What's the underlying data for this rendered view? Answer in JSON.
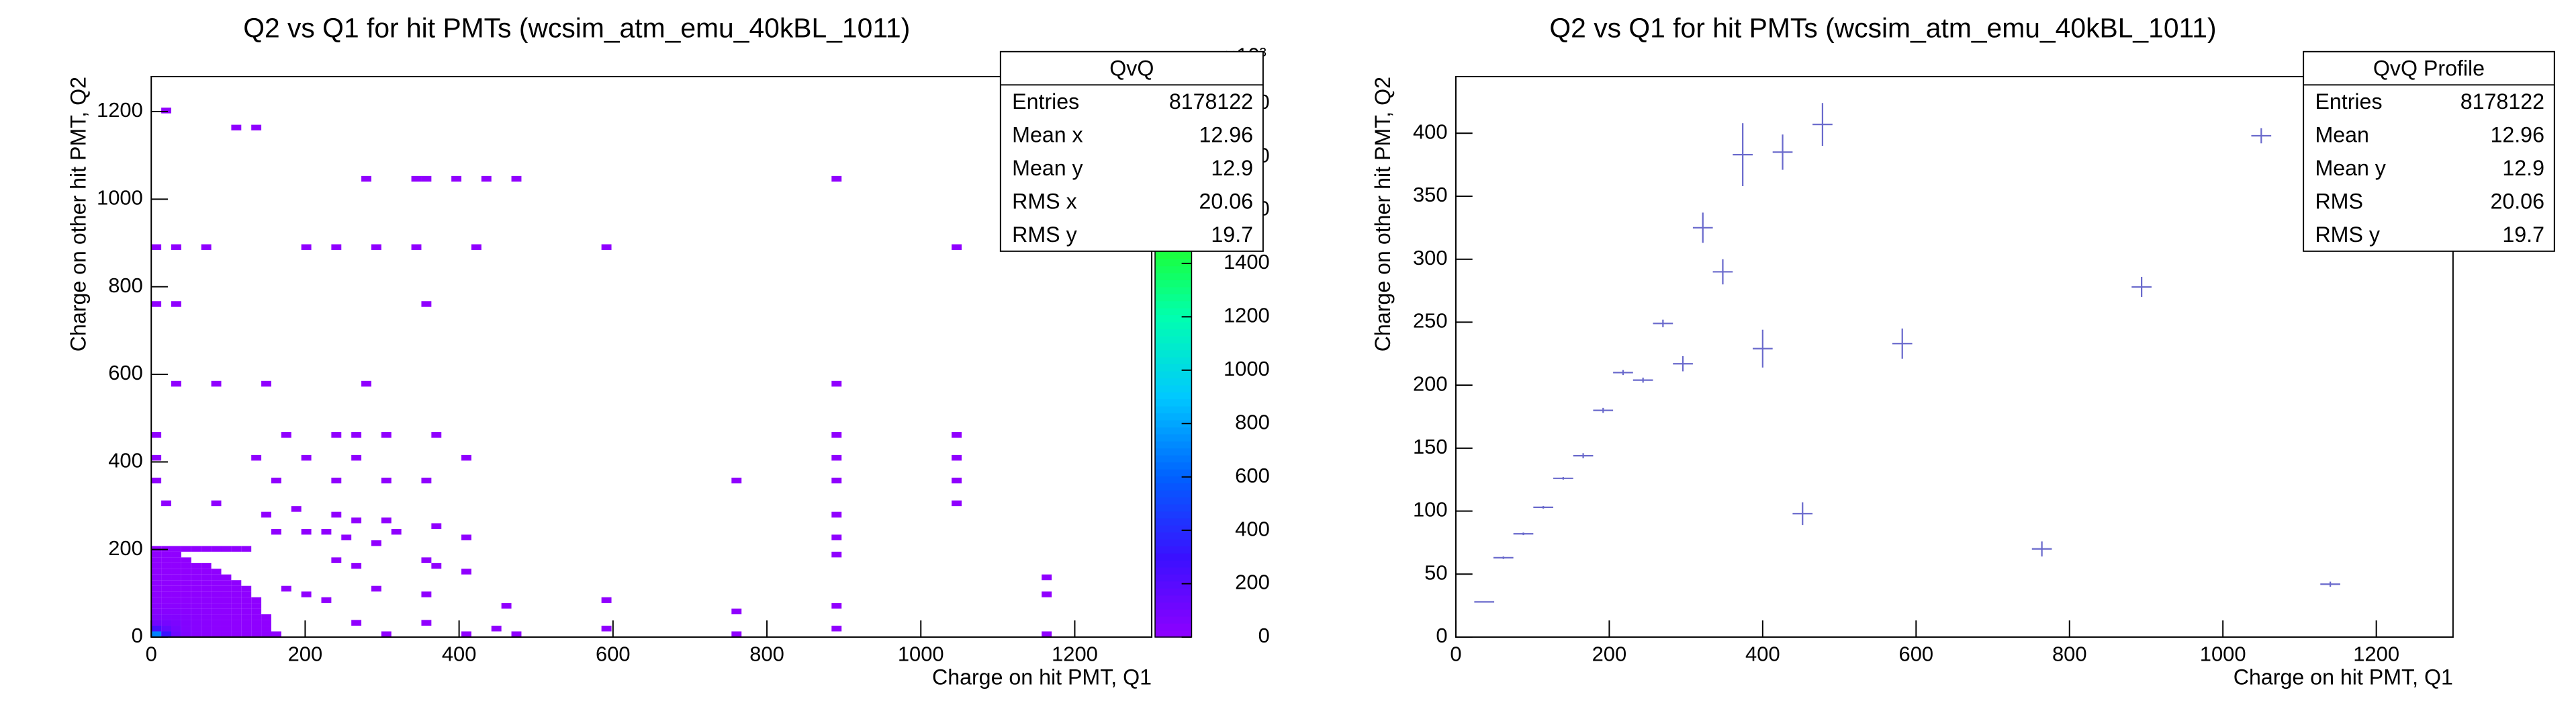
{
  "chart_data": [
    {
      "type": "heatmap",
      "title": "Q2 vs Q1 for hit PMTs (wcsim_atm_emu_40kBL_1011)",
      "x_label": "Charge on hit PMT, Q1",
      "y_label": "Charge on other hit PMT, Q2",
      "xlim": [
        0,
        1300
      ],
      "ylim": [
        0,
        1280
      ],
      "xticks": [
        0,
        200,
        400,
        600,
        800,
        1000,
        1200
      ],
      "yticks": [
        0,
        200,
        400,
        600,
        800,
        1000,
        1200
      ],
      "zlim": [
        0,
        2100
      ],
      "zticks": [
        0,
        200,
        400,
        600,
        800,
        1000,
        1200,
        1400,
        1600,
        1800,
        2000
      ],
      "z_exponent": "×10³",
      "palette": [
        "#9000ff",
        "#3a10ff",
        "#0060ff",
        "#00c8ff",
        "#00ffb0",
        "#20ff20",
        "#a0ff00",
        "#ffff00"
      ],
      "bin_size": [
        13,
        13
      ],
      "cells": [
        [
          0,
          0,
          700
        ],
        [
          13,
          0,
          300
        ],
        [
          26,
          0,
          120
        ],
        [
          39,
          0,
          60
        ],
        [
          52,
          0,
          30
        ],
        [
          65,
          0,
          20
        ],
        [
          78,
          0,
          12
        ],
        [
          91,
          0,
          8
        ],
        [
          104,
          0,
          5
        ],
        [
          117,
          0,
          3
        ],
        [
          130,
          0,
          2
        ],
        [
          143,
          0,
          2
        ],
        [
          156,
          0,
          1
        ],
        [
          0,
          13,
          250
        ],
        [
          13,
          13,
          150
        ],
        [
          26,
          13,
          90
        ],
        [
          39,
          13,
          50
        ],
        [
          52,
          13,
          30
        ],
        [
          65,
          13,
          20
        ],
        [
          78,
          13,
          12
        ],
        [
          91,
          13,
          8
        ],
        [
          104,
          13,
          5
        ],
        [
          117,
          13,
          3
        ],
        [
          130,
          13,
          2
        ],
        [
          143,
          13,
          1
        ],
        [
          0,
          26,
          100
        ],
        [
          13,
          26,
          90
        ],
        [
          26,
          26,
          70
        ],
        [
          39,
          26,
          45
        ],
        [
          52,
          26,
          30
        ],
        [
          65,
          26,
          20
        ],
        [
          78,
          26,
          12
        ],
        [
          91,
          26,
          8
        ],
        [
          104,
          26,
          5
        ],
        [
          117,
          26,
          3
        ],
        [
          130,
          26,
          2
        ],
        [
          143,
          26,
          1
        ],
        [
          0,
          39,
          50
        ],
        [
          13,
          39,
          50
        ],
        [
          26,
          39,
          45
        ],
        [
          39,
          39,
          35
        ],
        [
          52,
          39,
          25
        ],
        [
          65,
          39,
          18
        ],
        [
          78,
          39,
          12
        ],
        [
          91,
          39,
          8
        ],
        [
          104,
          39,
          5
        ],
        [
          117,
          39,
          3
        ],
        [
          130,
          39,
          2
        ],
        [
          143,
          39,
          1
        ],
        [
          0,
          52,
          30
        ],
        [
          13,
          52,
          30
        ],
        [
          26,
          52,
          30
        ],
        [
          39,
          52,
          25
        ],
        [
          52,
          52,
          20
        ],
        [
          65,
          52,
          15
        ],
        [
          78,
          52,
          10
        ],
        [
          91,
          52,
          7
        ],
        [
          104,
          52,
          5
        ],
        [
          117,
          52,
          3
        ],
        [
          130,
          52,
          2
        ],
        [
          0,
          65,
          20
        ],
        [
          13,
          65,
          20
        ],
        [
          26,
          65,
          20
        ],
        [
          39,
          65,
          18
        ],
        [
          52,
          65,
          15
        ],
        [
          65,
          65,
          12
        ],
        [
          78,
          65,
          9
        ],
        [
          91,
          65,
          6
        ],
        [
          104,
          65,
          4
        ],
        [
          117,
          65,
          3
        ],
        [
          130,
          65,
          2
        ],
        [
          0,
          78,
          12
        ],
        [
          13,
          78,
          12
        ],
        [
          26,
          78,
          12
        ],
        [
          39,
          78,
          12
        ],
        [
          52,
          78,
          11
        ],
        [
          65,
          78,
          10
        ],
        [
          78,
          78,
          8
        ],
        [
          91,
          78,
          6
        ],
        [
          104,
          78,
          4
        ],
        [
          117,
          78,
          3
        ],
        [
          130,
          78,
          2
        ],
        [
          0,
          91,
          8
        ],
        [
          13,
          91,
          8
        ],
        [
          26,
          91,
          8
        ],
        [
          39,
          91,
          8
        ],
        [
          52,
          91,
          8
        ],
        [
          65,
          91,
          7
        ],
        [
          78,
          91,
          6
        ],
        [
          91,
          91,
          5
        ],
        [
          104,
          91,
          3
        ],
        [
          117,
          91,
          2
        ],
        [
          0,
          104,
          5
        ],
        [
          13,
          104,
          5
        ],
        [
          26,
          104,
          5
        ],
        [
          39,
          104,
          5
        ],
        [
          52,
          104,
          5
        ],
        [
          65,
          104,
          5
        ],
        [
          78,
          104,
          4
        ],
        [
          91,
          104,
          4
        ],
        [
          104,
          104,
          3
        ],
        [
          117,
          104,
          2
        ],
        [
          0,
          117,
          3
        ],
        [
          13,
          117,
          3
        ],
        [
          26,
          117,
          3
        ],
        [
          39,
          117,
          3
        ],
        [
          52,
          117,
          3
        ],
        [
          65,
          117,
          3
        ],
        [
          78,
          117,
          3
        ],
        [
          91,
          117,
          2
        ],
        [
          104,
          117,
          2
        ],
        [
          0,
          130,
          2
        ],
        [
          13,
          130,
          2
        ],
        [
          26,
          130,
          2
        ],
        [
          39,
          130,
          2
        ],
        [
          52,
          130,
          2
        ],
        [
          65,
          130,
          2
        ],
        [
          78,
          130,
          2
        ],
        [
          91,
          130,
          2
        ],
        [
          0,
          143,
          1
        ],
        [
          13,
          143,
          1
        ],
        [
          26,
          143,
          1
        ],
        [
          39,
          143,
          1
        ],
        [
          52,
          143,
          1
        ],
        [
          65,
          143,
          1
        ],
        [
          78,
          143,
          1
        ],
        [
          0,
          156,
          1
        ],
        [
          13,
          156,
          1
        ],
        [
          26,
          156,
          1
        ],
        [
          39,
          156,
          1
        ],
        [
          52,
          156,
          1
        ],
        [
          65,
          156,
          1
        ],
        [
          0,
          169,
          1
        ],
        [
          13,
          169,
          1
        ],
        [
          26,
          169,
          1
        ],
        [
          39,
          169,
          1
        ],
        [
          0,
          182,
          1
        ],
        [
          13,
          182,
          1
        ],
        [
          26,
          182,
          1
        ],
        [
          0,
          195,
          1
        ],
        [
          13,
          195,
          1
        ],
        [
          26,
          195,
          1
        ],
        [
          39,
          195,
          1
        ],
        [
          52,
          195,
          1
        ],
        [
          65,
          195,
          1
        ],
        [
          78,
          195,
          1
        ],
        [
          91,
          195,
          1
        ],
        [
          104,
          195,
          1
        ],
        [
          117,
          195,
          1
        ],
        [
          13,
          1196,
          1
        ],
        [
          104,
          1157,
          1
        ],
        [
          130,
          1157,
          1
        ],
        [
          273,
          1040,
          1
        ],
        [
          338,
          1040,
          1
        ],
        [
          351,
          1040,
          1
        ],
        [
          390,
          1040,
          1
        ],
        [
          429,
          1040,
          1
        ],
        [
          468,
          1040,
          1
        ],
        [
          884,
          1040,
          1
        ],
        [
          0,
          884,
          1
        ],
        [
          26,
          884,
          1
        ],
        [
          65,
          884,
          1
        ],
        [
          195,
          884,
          1
        ],
        [
          234,
          884,
          1
        ],
        [
          286,
          884,
          1
        ],
        [
          338,
          884,
          1
        ],
        [
          416,
          884,
          1
        ],
        [
          585,
          884,
          1
        ],
        [
          1040,
          884,
          1
        ],
        [
          0,
          754,
          1
        ],
        [
          26,
          754,
          1
        ],
        [
          351,
          754,
          1
        ],
        [
          26,
          572,
          1
        ],
        [
          78,
          572,
          1
        ],
        [
          143,
          572,
          1
        ],
        [
          273,
          572,
          1
        ],
        [
          884,
          572,
          1
        ],
        [
          0,
          455,
          1
        ],
        [
          169,
          455,
          1
        ],
        [
          234,
          455,
          1
        ],
        [
          260,
          455,
          1
        ],
        [
          299,
          455,
          1
        ],
        [
          364,
          455,
          1
        ],
        [
          884,
          455,
          1
        ],
        [
          1040,
          455,
          1
        ],
        [
          0,
          403,
          1
        ],
        [
          130,
          403,
          1
        ],
        [
          195,
          403,
          1
        ],
        [
          260,
          403,
          1
        ],
        [
          403,
          403,
          1
        ],
        [
          884,
          403,
          1
        ],
        [
          1040,
          403,
          1
        ],
        [
          0,
          351,
          1
        ],
        [
          156,
          351,
          1
        ],
        [
          234,
          351,
          1
        ],
        [
          299,
          351,
          1
        ],
        [
          351,
          351,
          1
        ],
        [
          754,
          351,
          1
        ],
        [
          884,
          351,
          1
        ],
        [
          1040,
          351,
          1
        ],
        [
          13,
          299,
          1
        ],
        [
          78,
          299,
          1
        ],
        [
          143,
          273,
          1
        ],
        [
          182,
          286,
          1
        ],
        [
          234,
          273,
          1
        ],
        [
          260,
          260,
          1
        ],
        [
          299,
          260,
          1
        ],
        [
          884,
          273,
          1
        ],
        [
          1040,
          299,
          1
        ],
        [
          156,
          234,
          1
        ],
        [
          195,
          234,
          1
        ],
        [
          221,
          234,
          1
        ],
        [
          247,
          221,
          1
        ],
        [
          286,
          208,
          1
        ],
        [
          312,
          234,
          1
        ],
        [
          364,
          247,
          1
        ],
        [
          403,
          221,
          1
        ],
        [
          884,
          221,
          1
        ],
        [
          234,
          169,
          1
        ],
        [
          260,
          156,
          1
        ],
        [
          351,
          169,
          1
        ],
        [
          364,
          156,
          1
        ],
        [
          403,
          143,
          1
        ],
        [
          884,
          182,
          1
        ],
        [
          1157,
          130,
          1
        ],
        [
          169,
          104,
          1
        ],
        [
          195,
          91,
          1
        ],
        [
          221,
          78,
          1
        ],
        [
          286,
          104,
          1
        ],
        [
          351,
          91,
          1
        ],
        [
          455,
          65,
          1
        ],
        [
          585,
          78,
          1
        ],
        [
          754,
          52,
          1
        ],
        [
          884,
          65,
          1
        ],
        [
          1157,
          91,
          1
        ],
        [
          260,
          26,
          1
        ],
        [
          299,
          0,
          1
        ],
        [
          351,
          26,
          1
        ],
        [
          403,
          0,
          1
        ],
        [
          442,
          13,
          1
        ],
        [
          468,
          0,
          1
        ],
        [
          585,
          13,
          1
        ],
        [
          754,
          0,
          1
        ],
        [
          884,
          13,
          1
        ],
        [
          1157,
          0,
          1
        ]
      ],
      "stats": {
        "title": "QvQ",
        "rows": [
          [
            "Entries",
            8178122
          ],
          [
            "Mean x",
            12.96
          ],
          [
            "Mean y",
            12.9
          ],
          [
            "RMS x",
            20.06
          ],
          [
            "RMS y",
            19.7
          ]
        ]
      }
    },
    {
      "type": "profile",
      "title": "Q2 vs Q1 for hit PMTs (wcsim_atm_emu_40kBL_1011)",
      "x_label": "Charge on hit PMT, Q1",
      "y_label": "Charge on other hit PMT, Q2",
      "xlim": [
        0,
        1300
      ],
      "ylim": [
        0,
        445
      ],
      "xticks": [
        0,
        200,
        400,
        600,
        800,
        1000,
        1200
      ],
      "yticks": [
        0,
        50,
        100,
        150,
        200,
        250,
        300,
        350,
        400
      ],
      "color": "#6a6acc",
      "xerr": 13,
      "x": [
        37,
        62,
        88,
        114,
        140,
        166,
        192,
        218,
        244,
        270,
        296,
        322,
        348,
        374,
        400,
        426,
        452,
        478,
        582,
        764,
        894,
        1050,
        1140
      ],
      "values": [
        28,
        63,
        82,
        103,
        126,
        144,
        180,
        210,
        204,
        249,
        217,
        325,
        290,
        383,
        229,
        385,
        98,
        407,
        233,
        70,
        278,
        398,
        42
      ],
      "errors": [
        0,
        1,
        1,
        1,
        1,
        2,
        2,
        2,
        2,
        3,
        6,
        12,
        10,
        25,
        15,
        14,
        9,
        17,
        12,
        6,
        8,
        6,
        2
      ],
      "stats": {
        "title": "QvQ Profile",
        "rows": [
          [
            "Entries",
            8178122
          ],
          [
            "Mean",
            12.96
          ],
          [
            "Mean y",
            12.9
          ],
          [
            "RMS",
            20.06
          ],
          [
            "RMS y",
            19.7
          ]
        ]
      }
    }
  ]
}
